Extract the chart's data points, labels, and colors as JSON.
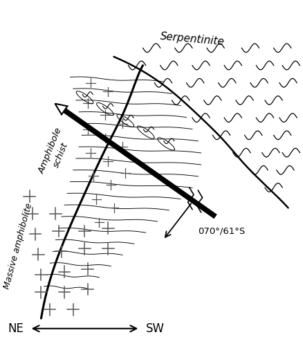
{
  "figsize": [
    4.39,
    5.0
  ],
  "dpi": 100,
  "background_color": "#ffffff",
  "label_serpentinite": "Serpentinite",
  "label_amphibole": "Amphibole\nschist",
  "label_massive": "Massive amphibolite",
  "label_dip": "070°/61°S",
  "label_ne": "NE",
  "label_sw": "SW",
  "title_fontsize": 10,
  "annotation_fontsize": 9,
  "axis_label_fontsize": 12
}
